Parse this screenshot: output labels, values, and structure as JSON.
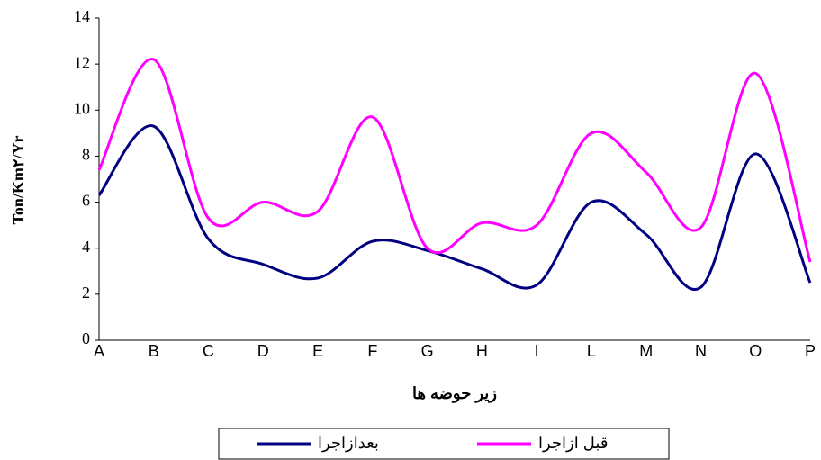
{
  "chart_data": {
    "type": "line",
    "ylabel": "Ton/Km۲/Yr",
    "xlabel": "زیر حوضه ها",
    "categories": [
      "A",
      "B",
      "C",
      "D",
      "E",
      "F",
      "G",
      "H",
      "I",
      "L",
      "M",
      "N",
      "O",
      "P"
    ],
    "series": [
      {
        "name": "بعدازاجرا",
        "color": "#000080",
        "values": [
          6.3,
          9.3,
          4.4,
          3.3,
          2.7,
          4.3,
          3.9,
          3.1,
          2.4,
          6.0,
          4.6,
          2.3,
          8.1,
          2.5
        ]
      },
      {
        "name": "قبل ازاجرا",
        "color": "#ff00ff",
        "values": [
          7.4,
          12.2,
          5.3,
          6.0,
          5.6,
          9.7,
          4.0,
          5.1,
          5.0,
          9.0,
          7.3,
          4.9,
          11.6,
          3.4
        ]
      }
    ],
    "ylim": [
      0,
      14
    ],
    "yticks": [
      0,
      2,
      4,
      6,
      8,
      10,
      12,
      14
    ],
    "grid": false
  }
}
